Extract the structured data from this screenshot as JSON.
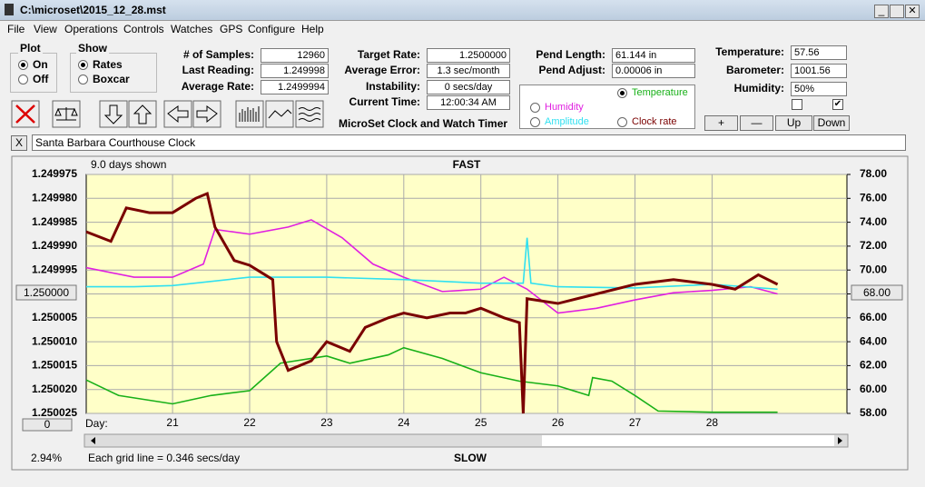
{
  "window": {
    "title": "C:\\microset\\2015_12_28.mst"
  },
  "menu": [
    "File",
    "View",
    "Operations",
    "Controls",
    "Watches",
    "GPS",
    "Configure",
    "Help"
  ],
  "plot_group": {
    "title": "Plot",
    "options": [
      "On",
      "Off"
    ]
  },
  "show_group": {
    "title": "Show",
    "options": [
      "Rates",
      "Boxcar"
    ]
  },
  "fields": [
    {
      "label": "# of Samples:",
      "value": "12960"
    },
    {
      "label": "Last Reading:",
      "value": "1.249998"
    },
    {
      "label": "Average Rate:",
      "value": "1.2499994"
    },
    {
      "label": "Target Rate:",
      "value": "1.2500000"
    },
    {
      "label": "Average Error:",
      "value": "1.3 sec/month"
    },
    {
      "label": "Instability:",
      "value": "0 secs/day"
    },
    {
      "label": "Current Time:",
      "value": "12:00:34 AM"
    },
    {
      "label": "Pend Length:",
      "value": "61.144 in"
    },
    {
      "label": "Pend Adjust:",
      "value": "0.00006 in"
    },
    {
      "label": "Temperature:",
      "value": "57.56"
    },
    {
      "label": "Barometer:",
      "value": "1001.56"
    },
    {
      "label": "Humidity:",
      "value": "50%"
    }
  ],
  "app_title": "MicroSet Clock and Watch Timer",
  "plot_select": [
    "Temperature",
    "Humidity",
    "Amplitude",
    "Clock rate"
  ],
  "buttons": [
    "+",
    "—",
    "Up",
    "Down"
  ],
  "close_button": "X",
  "watch_name": "Santa Barbara Courthouse Clock",
  "chart": {
    "type": "line",
    "days_shown": "9.0 days shown",
    "top_label": "FAST",
    "bottom_label": "SLOW",
    "x_label": "Day:",
    "footer": "Each grid line = 0.346 secs/day",
    "percent": "2.94%",
    "left_box": "1.250000",
    "right_box": "68.00",
    "bottom_box": "0",
    "xlim": [
      19.88,
      29.75
    ],
    "xticks": [
      21,
      22,
      23,
      24,
      25,
      26,
      27,
      28
    ],
    "ylim": [
      1.249975,
      1.250025
    ],
    "y_inverted": true,
    "yticks": [
      1.249975,
      {
        "value": 1.24998,
        "label": "1.249980"
      },
      1.249985,
      {
        "value": 1.24999,
        "label": "1.249990"
      },
      1.249995,
      {
        "value": 1.25,
        "label": "1.250000"
      },
      1.250005,
      {
        "value": 1.25001,
        "label": "1.250010"
      },
      1.250015,
      {
        "value": 1.25002,
        "label": "1.250020"
      },
      1.250025
    ],
    "y2lim": [
      58,
      78
    ],
    "y2ticks": [
      {
        "value": 78,
        "label": "78.00"
      },
      {
        "value": 76,
        "label": "76.00"
      },
      {
        "value": 74,
        "label": "74.00"
      },
      {
        "value": 72,
        "label": "72.00"
      },
      {
        "value": 70,
        "label": "70.00"
      },
      {
        "value": 68,
        "label": "68.00"
      },
      {
        "value": 66,
        "label": "66.00"
      },
      {
        "value": 64,
        "label": "64.00"
      },
      {
        "value": 62,
        "label": "62.00"
      },
      {
        "value": 60,
        "label": "60.00"
      },
      {
        "value": 58,
        "label": "58.00"
      }
    ],
    "grid": true,
    "series": [
      {
        "name": "Temperature",
        "color": "#18b018",
        "axis": "y2",
        "x": [
          19.88,
          20.3,
          21.0,
          21.5,
          22.0,
          22.4,
          23.0,
          23.3,
          23.8,
          24.0,
          24.5,
          25.0,
          25.5,
          26.0,
          26.4,
          26.45,
          26.7,
          27.0,
          27.3,
          28.0,
          28.85
        ],
        "values": [
          60.8,
          59.5,
          58.8,
          59.5,
          59.9,
          62.2,
          62.8,
          62.2,
          62.9,
          63.5,
          62.6,
          61.4,
          60.7,
          60.3,
          59.5,
          61.0,
          60.7,
          59.5,
          58.2,
          58.1,
          58.1
        ]
      },
      {
        "name": "Humidity",
        "color": "#e020e0",
        "axis": "y2",
        "x": [
          19.88,
          20.5,
          21.0,
          21.4,
          21.55,
          22.0,
          22.5,
          22.8,
          23.2,
          23.6,
          24.0,
          24.5,
          25.0,
          25.3,
          25.6,
          26.0,
          26.5,
          27.0,
          27.5,
          28.0,
          28.5,
          28.85
        ],
        "values": [
          70.2,
          69.4,
          69.4,
          70.5,
          73.4,
          73.0,
          73.6,
          74.2,
          72.7,
          70.5,
          69.4,
          68.2,
          68.4,
          69.4,
          68.4,
          66.4,
          66.8,
          67.5,
          68.1,
          68.3,
          68.6,
          68.0
        ]
      },
      {
        "name": "Amplitude",
        "color": "#30e0f0",
        "axis": "y2",
        "x": [
          19.88,
          20.5,
          21.0,
          22.0,
          23.0,
          24.0,
          25.0,
          25.55,
          25.6,
          25.65,
          26.0,
          27.0,
          28.0,
          28.85
        ],
        "values": [
          68.6,
          68.6,
          68.7,
          69.4,
          69.4,
          69.2,
          68.9,
          68.9,
          72.7,
          68.9,
          68.6,
          68.5,
          68.8,
          68.4
        ]
      },
      {
        "name": "Clock rate",
        "color": "#7a0000",
        "axis": "y",
        "x": [
          19.88,
          20.2,
          20.4,
          20.7,
          21.0,
          21.3,
          21.45,
          21.55,
          21.8,
          22.0,
          22.2,
          22.3,
          22.35,
          22.5,
          22.8,
          23.0,
          23.3,
          23.5,
          23.8,
          24.0,
          24.3,
          24.6,
          24.8,
          25.0,
          25.3,
          25.5,
          25.55,
          25.6,
          26.0,
          26.5,
          27.0,
          27.5,
          28.0,
          28.3,
          28.6,
          28.85
        ],
        "values": [
          1.249987,
          1.249989,
          1.249982,
          1.249983,
          1.249983,
          1.24998,
          1.249979,
          1.249986,
          1.249993,
          1.249994,
          1.249996,
          1.249997,
          1.25001,
          1.250016,
          1.250014,
          1.25001,
          1.250012,
          1.250007,
          1.250005,
          1.250004,
          1.250005,
          1.250004,
          1.250004,
          1.250003,
          1.250005,
          1.250006,
          1.250025,
          1.250001,
          1.250002,
          1.25,
          1.249998,
          1.249997,
          1.249998,
          1.249999,
          1.249996,
          1.249998
        ]
      }
    ]
  }
}
